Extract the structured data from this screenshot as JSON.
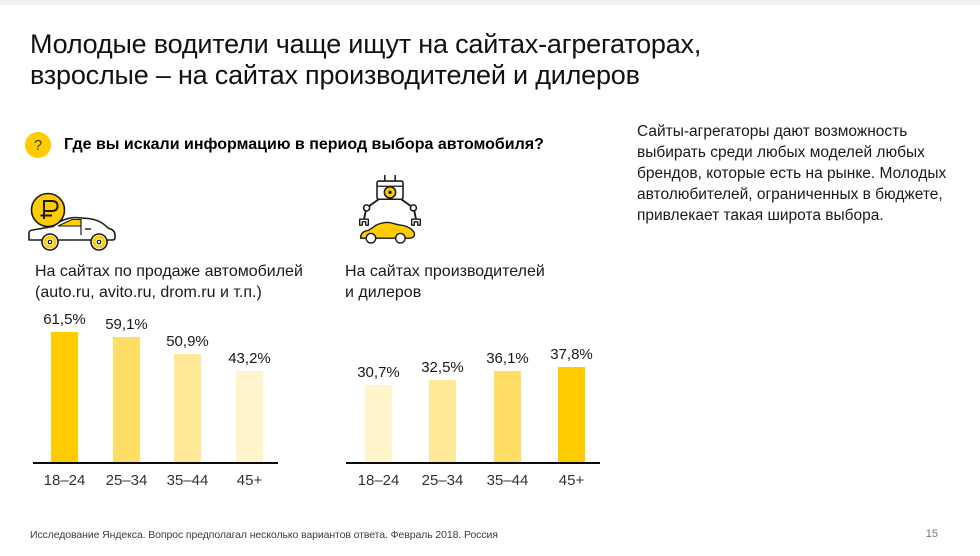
{
  "slide": {
    "title_line1": "Молодые водители чаще ищут на сайтах-агрегаторах,",
    "title_line2": "взрослые – на сайтах производителей и дилеров",
    "question": {
      "icon_glyph": "?",
      "label": "Где вы искали информацию в период выбора автомобиля?"
    },
    "insight": "Сайты-агрегаторы дают возможность выбирать среди любых моделей любых брендов, которые есть на рынке. Молодых автолюбителей, ограниченных в бюджете, привлекает такая широта выбора.",
    "icons": {
      "left": "ruble-coin-car-icon",
      "right": "claw-machine-car-icon"
    },
    "footer_source": "Исследование Яндекса. Вопрос предполагал несколько вариантов ответа. Февраль 2018. Россия",
    "page_number": "15"
  },
  "colors": {
    "accent_yellow": "#FFCC00",
    "yellow_75": "#FFDE66",
    "yellow_50": "#FFEA99",
    "yellow_25": "#FFF4CC",
    "text_dark": "#1A1A1A",
    "axis_black": "#0A0A0A"
  },
  "chart_data": [
    {
      "type": "bar",
      "title": "На сайтах по продаже автомобилей (auto.ru, avito.ru, drom.ru и т.п.)",
      "title_lines": [
        "На сайтах по продаже автомобилей",
        "(auto.ru, avito.ru, drom.ru и т.п.)"
      ],
      "categories": [
        "18–24",
        "25–34",
        "35–44",
        "45+"
      ],
      "values": [
        61.5,
        59.1,
        50.9,
        43.2
      ],
      "value_labels": [
        "61,5%",
        "59,1%",
        "50,9%",
        "43,2%"
      ],
      "bar_colors": [
        "#FFCC00",
        "#FFDE66",
        "#FFEA99",
        "#FFF4CC"
      ],
      "xlabel": "",
      "ylabel": "",
      "ylim": [
        0,
        70
      ],
      "grid": false,
      "legend": null
    },
    {
      "type": "bar",
      "title": "На сайтах производителей и дилеров",
      "title_lines": [
        "На сайтах производителей",
        "и дилеров"
      ],
      "categories": [
        "18–24",
        "25–34",
        "35–44",
        "45+"
      ],
      "values": [
        30.7,
        32.5,
        36.1,
        37.8
      ],
      "value_labels": [
        "30,7%",
        "32,5%",
        "36,1%",
        "37,8%"
      ],
      "bar_colors": [
        "#FFF4CC",
        "#FFEA99",
        "#FFDE66",
        "#FFCC00"
      ],
      "xlabel": "",
      "ylabel": "",
      "ylim": [
        0,
        70
      ],
      "grid": false,
      "legend": null
    }
  ]
}
